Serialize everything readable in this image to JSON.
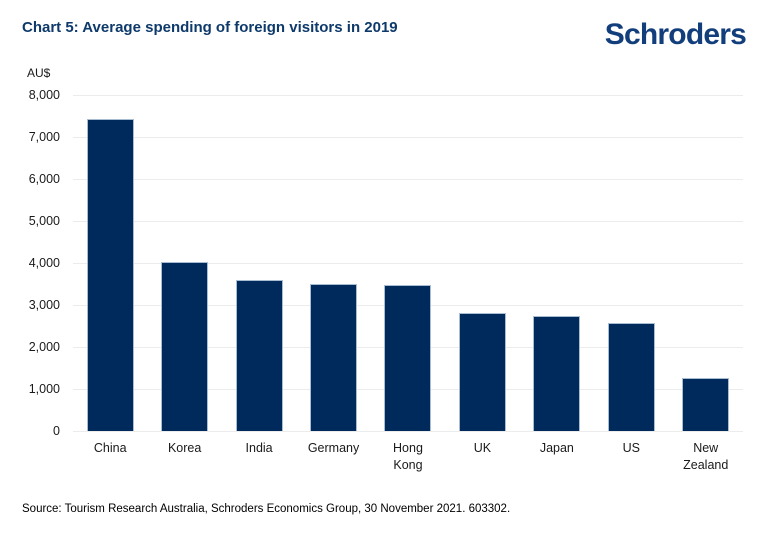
{
  "header": {
    "title": "Chart 5: Average spending of foreign visitors in 2019",
    "logo_text": "Schroders"
  },
  "chart_data": {
    "type": "bar",
    "title": "Chart 5: Average spending of foreign visitors in 2019",
    "unit_label": "AU$",
    "categories": [
      "China",
      "Korea",
      "India",
      "Germany",
      "Hong Kong",
      "UK",
      "Japan",
      "US",
      "New Zealand"
    ],
    "values": [
      7430,
      4030,
      3600,
      3500,
      3480,
      2800,
      2740,
      2570,
      1270
    ],
    "ylim": [
      0,
      8000
    ],
    "ytick_step": 1000,
    "ytick_labels": [
      "0",
      "1,000",
      "2,000",
      "3,000",
      "4,000",
      "5,000",
      "6,000",
      "7,000",
      "8,000"
    ],
    "xlabel": "",
    "ylabel": "AU$",
    "grid": "horizontal",
    "legend": "none"
  },
  "footer": {
    "source": "Source: Tourism Research Australia, Schroders Economics Group, 30 November 2021. 603302."
  },
  "colors": {
    "bar_fill": "#002a5c",
    "bar_border": "#a9bdd2",
    "title_text": "#0e3a6b",
    "logo_text": "#123e7c",
    "gridline": "#ececec",
    "axis_text": "#1a1a1a"
  }
}
